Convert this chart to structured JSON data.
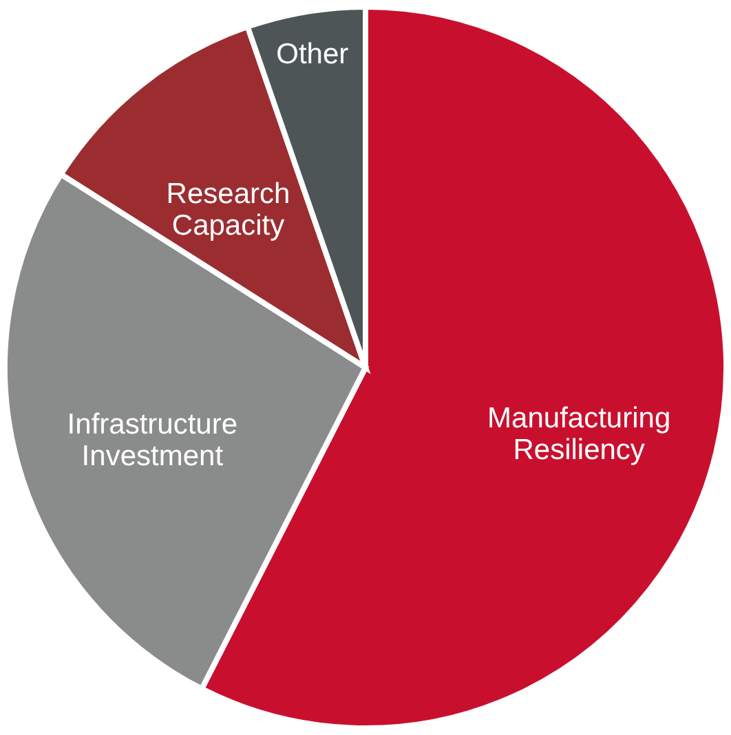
{
  "chart_data": {
    "type": "pie",
    "categories": [
      "Manufacturing Resiliency",
      "Infrastructure Investment",
      "Research Capacity",
      "Other"
    ],
    "values": [
      57.5,
      26.5,
      10.7,
      5.3
    ],
    "colors": [
      "#c8102e",
      "#8a8c8c",
      "#9b2d30",
      "#4d5557"
    ]
  }
}
